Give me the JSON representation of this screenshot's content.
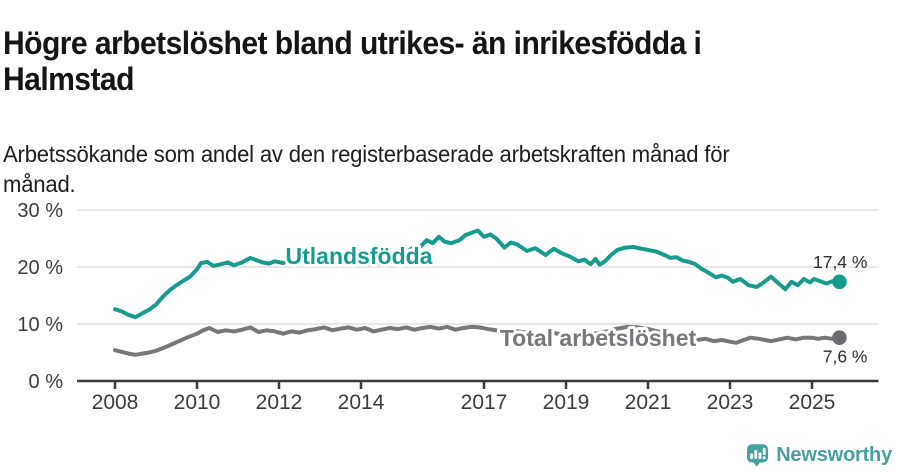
{
  "header": {
    "title_lines": [
      "Högre arbetslöshet bland utrikes- än inrikesfödda i",
      "Halmstad"
    ],
    "subtitle_lines": [
      "Arbetssökande som andel av den registerbaserade arbetskraften månad för",
      "månad."
    ]
  },
  "branding": {
    "label": "Newsworthy",
    "icon": "newsworthy-pin-icon",
    "color": "#46a09d"
  },
  "colors": {
    "accent_teal": "#189a8d",
    "series_gray": "#76777b",
    "gray_dot": "#6b6c70",
    "gridline": "#d9d9d9",
    "axis": "#3a3a3a",
    "tick_text": "#3b3b3b",
    "end_label_text": "#2f2f2f"
  },
  "chart_data": {
    "type": "line",
    "title": "Högre arbetslöshet bland utrikes- än inrikesfödda i Halmstad",
    "subtitle": "Arbetssökande som andel av den registerbaserade arbetskraften månad för månad.",
    "xlabel": "",
    "ylabel": "",
    "unit": "%",
    "grid": "horizontal",
    "legend_position": "inline-labels",
    "ylim": [
      0,
      32
    ],
    "xlim": [
      2007.1,
      2026.6
    ],
    "y_ticks": [
      0,
      10,
      20,
      30
    ],
    "y_tick_labels": [
      "0 %",
      "10 %",
      "20 %",
      "30 %"
    ],
    "x_ticks": [
      2008,
      2010,
      2012,
      2014,
      2017,
      2019,
      2021,
      2023,
      2025
    ],
    "x_tick_labels": [
      "2008",
      "2010",
      "2012",
      "2014",
      "2017",
      "2019",
      "2021",
      "2023",
      "2025"
    ],
    "series": [
      {
        "name": "Utlandsfödda",
        "color": "#189a8d",
        "end_value": 17.4,
        "end_label": "17,4 %",
        "points": [
          [
            2008.0,
            12.6
          ],
          [
            2008.17,
            12.2
          ],
          [
            2008.33,
            11.6
          ],
          [
            2008.5,
            11.2
          ],
          [
            2008.67,
            11.9
          ],
          [
            2008.83,
            12.5
          ],
          [
            2009.0,
            13.4
          ],
          [
            2009.17,
            14.8
          ],
          [
            2009.33,
            15.9
          ],
          [
            2009.5,
            16.8
          ],
          [
            2009.67,
            17.6
          ],
          [
            2009.83,
            18.3
          ],
          [
            2010.0,
            19.6
          ],
          [
            2010.1,
            20.7
          ],
          [
            2010.25,
            20.9
          ],
          [
            2010.4,
            20.2
          ],
          [
            2010.6,
            20.5
          ],
          [
            2010.75,
            20.8
          ],
          [
            2010.9,
            20.3
          ],
          [
            2011.1,
            20.8
          ],
          [
            2011.3,
            21.6
          ],
          [
            2011.45,
            21.2
          ],
          [
            2011.6,
            20.8
          ],
          [
            2011.75,
            20.6
          ],
          [
            2011.9,
            21.0
          ],
          [
            2012.1,
            20.7
          ],
          [
            2012.3,
            21.2
          ],
          [
            2012.5,
            20.8
          ],
          [
            2012.7,
            21.1
          ],
          [
            2012.9,
            21.3
          ],
          [
            2013.05,
            20.9
          ],
          [
            2013.25,
            20.5
          ],
          [
            2013.45,
            20.9
          ],
          [
            2013.65,
            21.2
          ],
          [
            2013.85,
            20.8
          ],
          [
            2014.05,
            21.0
          ],
          [
            2014.25,
            20.4
          ],
          [
            2014.45,
            20.7
          ],
          [
            2014.65,
            21.1
          ],
          [
            2014.85,
            21.5
          ],
          [
            2015.05,
            22.3
          ],
          [
            2015.25,
            23.3
          ],
          [
            2015.45,
            23.6
          ],
          [
            2015.6,
            24.7
          ],
          [
            2015.75,
            24.2
          ],
          [
            2015.9,
            25.3
          ],
          [
            2016.05,
            24.4
          ],
          [
            2016.2,
            24.2
          ],
          [
            2016.4,
            24.7
          ],
          [
            2016.55,
            25.6
          ],
          [
            2016.7,
            26.0
          ],
          [
            2016.85,
            26.4
          ],
          [
            2017.0,
            25.3
          ],
          [
            2017.15,
            25.7
          ],
          [
            2017.3,
            25.0
          ],
          [
            2017.5,
            23.4
          ],
          [
            2017.65,
            24.3
          ],
          [
            2017.8,
            24.0
          ],
          [
            2018.05,
            22.8
          ],
          [
            2018.25,
            23.3
          ],
          [
            2018.5,
            22.1
          ],
          [
            2018.7,
            23.2
          ],
          [
            2018.9,
            22.4
          ],
          [
            2019.1,
            21.8
          ],
          [
            2019.3,
            21.0
          ],
          [
            2019.45,
            21.3
          ],
          [
            2019.6,
            20.5
          ],
          [
            2019.72,
            21.4
          ],
          [
            2019.82,
            20.4
          ],
          [
            2019.95,
            21.0
          ],
          [
            2020.1,
            22.1
          ],
          [
            2020.25,
            23.0
          ],
          [
            2020.45,
            23.4
          ],
          [
            2020.65,
            23.5
          ],
          [
            2020.85,
            23.2
          ],
          [
            2021.0,
            23.0
          ],
          [
            2021.2,
            22.7
          ],
          [
            2021.4,
            22.1
          ],
          [
            2021.55,
            21.6
          ],
          [
            2021.7,
            21.7
          ],
          [
            2021.85,
            21.1
          ],
          [
            2022.0,
            20.9
          ],
          [
            2022.15,
            20.5
          ],
          [
            2022.3,
            19.7
          ],
          [
            2022.5,
            18.9
          ],
          [
            2022.65,
            18.2
          ],
          [
            2022.8,
            18.5
          ],
          [
            2022.95,
            18.1
          ],
          [
            2023.07,
            17.4
          ],
          [
            2023.25,
            17.9
          ],
          [
            2023.45,
            16.8
          ],
          [
            2023.65,
            16.5
          ],
          [
            2023.8,
            17.2
          ],
          [
            2024.0,
            18.3
          ],
          [
            2024.17,
            17.2
          ],
          [
            2024.35,
            16.1
          ],
          [
            2024.5,
            17.4
          ],
          [
            2024.65,
            16.8
          ],
          [
            2024.8,
            17.9
          ],
          [
            2024.95,
            17.3
          ],
          [
            2025.05,
            17.9
          ],
          [
            2025.2,
            17.5
          ],
          [
            2025.35,
            17.1
          ],
          [
            2025.5,
            17.5
          ],
          [
            2025.67,
            17.4
          ]
        ]
      },
      {
        "name": "Total arbetslöshet",
        "color": "#76777b",
        "end_value": 7.6,
        "end_label": "7,6 %",
        "points": [
          [
            2008.0,
            5.4
          ],
          [
            2008.17,
            5.1
          ],
          [
            2008.33,
            4.8
          ],
          [
            2008.5,
            4.6
          ],
          [
            2008.67,
            4.8
          ],
          [
            2008.83,
            5.0
          ],
          [
            2009.0,
            5.3
          ],
          [
            2009.25,
            6.0
          ],
          [
            2009.5,
            6.8
          ],
          [
            2009.75,
            7.6
          ],
          [
            2010.0,
            8.3
          ],
          [
            2010.15,
            8.9
          ],
          [
            2010.3,
            9.3
          ],
          [
            2010.5,
            8.6
          ],
          [
            2010.7,
            8.9
          ],
          [
            2010.9,
            8.7
          ],
          [
            2011.1,
            9.0
          ],
          [
            2011.3,
            9.4
          ],
          [
            2011.5,
            8.6
          ],
          [
            2011.7,
            8.9
          ],
          [
            2011.9,
            8.7
          ],
          [
            2012.1,
            8.3
          ],
          [
            2012.3,
            8.7
          ],
          [
            2012.5,
            8.5
          ],
          [
            2012.7,
            8.9
          ],
          [
            2012.9,
            9.1
          ],
          [
            2013.1,
            9.4
          ],
          [
            2013.3,
            8.9
          ],
          [
            2013.5,
            9.2
          ],
          [
            2013.7,
            9.4
          ],
          [
            2013.9,
            9.0
          ],
          [
            2014.1,
            9.3
          ],
          [
            2014.3,
            8.7
          ],
          [
            2014.5,
            9.0
          ],
          [
            2014.7,
            9.3
          ],
          [
            2014.9,
            9.1
          ],
          [
            2015.1,
            9.4
          ],
          [
            2015.3,
            9.0
          ],
          [
            2015.5,
            9.3
          ],
          [
            2015.7,
            9.5
          ],
          [
            2015.9,
            9.2
          ],
          [
            2016.1,
            9.5
          ],
          [
            2016.3,
            9.0
          ],
          [
            2016.5,
            9.3
          ],
          [
            2016.7,
            9.5
          ],
          [
            2016.9,
            9.4
          ],
          [
            2017.1,
            9.1
          ],
          [
            2017.3,
            8.9
          ],
          [
            2017.5,
            8.8
          ],
          [
            2017.7,
            8.9
          ],
          [
            2017.9,
            8.6
          ],
          [
            2018.1,
            8.5
          ],
          [
            2018.3,
            8.3
          ],
          [
            2018.5,
            8.2
          ],
          [
            2018.7,
            8.4
          ],
          [
            2018.9,
            8.2
          ],
          [
            2019.1,
            8.1
          ],
          [
            2019.3,
            8.0
          ],
          [
            2019.5,
            8.2
          ],
          [
            2019.75,
            8.4
          ],
          [
            2020.0,
            8.7
          ],
          [
            2020.25,
            9.2
          ],
          [
            2020.5,
            9.5
          ],
          [
            2020.75,
            9.4
          ],
          [
            2021.0,
            9.1
          ],
          [
            2021.25,
            8.7
          ],
          [
            2021.5,
            8.3
          ],
          [
            2021.75,
            7.9
          ],
          [
            2022.0,
            7.5
          ],
          [
            2022.2,
            7.2
          ],
          [
            2022.4,
            7.4
          ],
          [
            2022.6,
            7.0
          ],
          [
            2022.8,
            7.2
          ],
          [
            2023.0,
            6.9
          ],
          [
            2023.15,
            6.7
          ],
          [
            2023.3,
            7.1
          ],
          [
            2023.5,
            7.6
          ],
          [
            2023.7,
            7.4
          ],
          [
            2023.85,
            7.2
          ],
          [
            2024.0,
            7.0
          ],
          [
            2024.2,
            7.3
          ],
          [
            2024.4,
            7.6
          ],
          [
            2024.6,
            7.3
          ],
          [
            2024.8,
            7.6
          ],
          [
            2025.0,
            7.6
          ],
          [
            2025.15,
            7.4
          ],
          [
            2025.3,
            7.6
          ],
          [
            2025.5,
            7.4
          ],
          [
            2025.67,
            7.6
          ]
        ]
      }
    ]
  }
}
